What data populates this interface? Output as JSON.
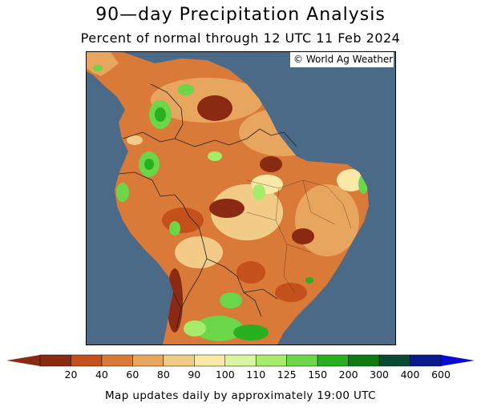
{
  "header": {
    "title": "90—day Precipitation Analysis",
    "subtitle": "Percent of normal through 12 UTC 11 Feb 2024"
  },
  "map": {
    "credit": "© World Ag Weather",
    "ocean_color": "#4a6a88"
  },
  "legend": {
    "bins": [
      {
        "label": "20",
        "color": "#8a2a12"
      },
      {
        "label": "40",
        "color": "#c4501c"
      },
      {
        "label": "60",
        "color": "#d97a38"
      },
      {
        "label": "80",
        "color": "#e8a55e"
      },
      {
        "label": "90",
        "color": "#f2cb86"
      },
      {
        "label": "100",
        "color": "#fae8a6"
      },
      {
        "label": "110",
        "color": "#d8f5a0"
      },
      {
        "label": "125",
        "color": "#a6ec6a"
      },
      {
        "label": "150",
        "color": "#6ad648"
      },
      {
        "label": "200",
        "color": "#29b01e"
      },
      {
        "label": "300",
        "color": "#0e7a12"
      },
      {
        "label": "400",
        "color": "#0a4a36"
      },
      {
        "label": "600",
        "color": "#0a1a8c"
      }
    ],
    "low_arrow_color": "#8a2a12",
    "high_arrow_color": "#0b0bd6"
  },
  "footer": {
    "text": "Map updates daily by approximately 19:00 UTC"
  }
}
